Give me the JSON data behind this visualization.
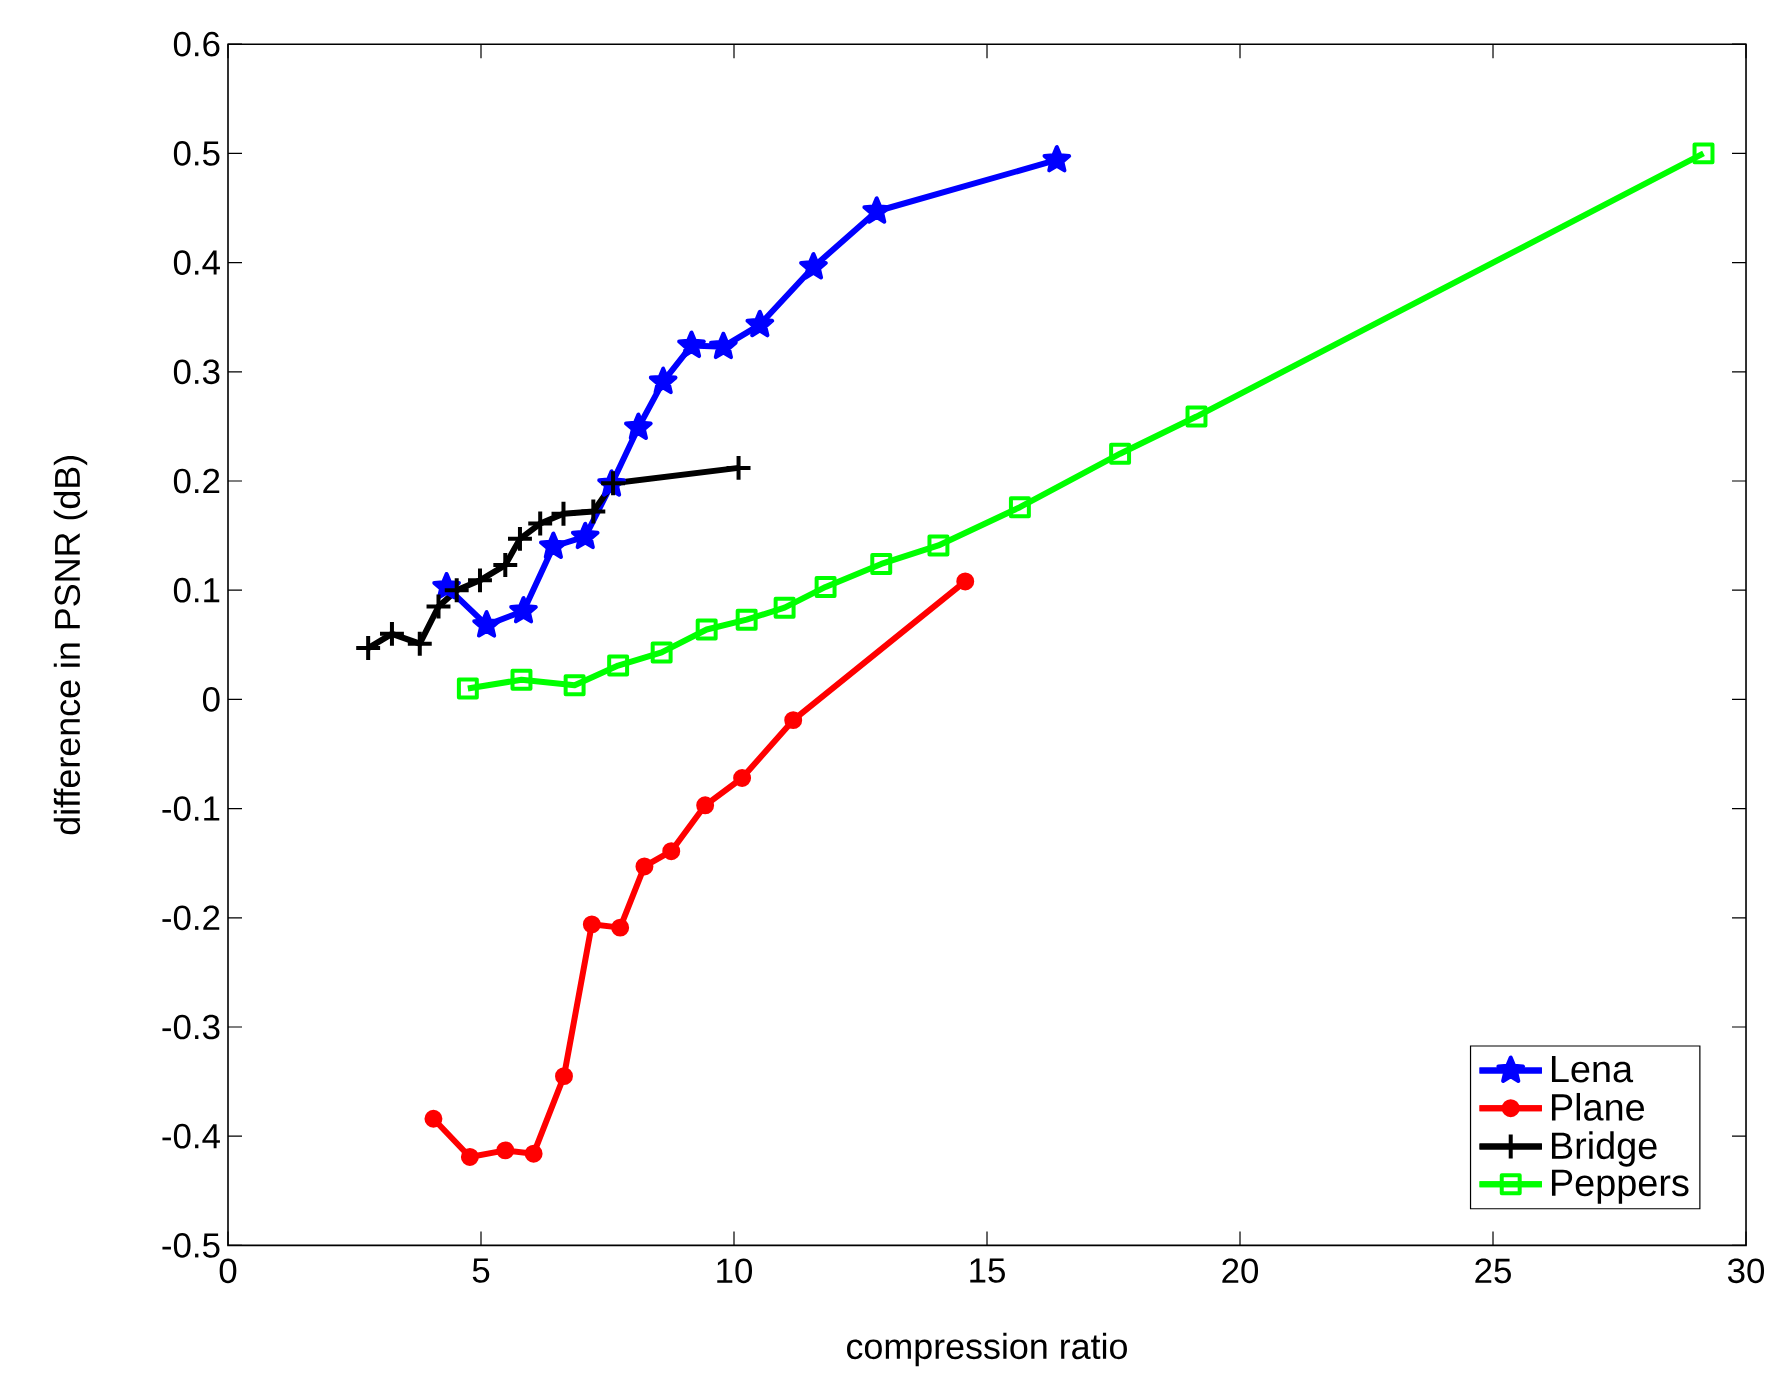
{
  "chart_data": {
    "type": "line",
    "xlabel": "compression ratio",
    "ylabel": "difference in PSNR (dB)",
    "xlim": [
      0,
      30
    ],
    "ylim": [
      -0.5,
      0.6
    ],
    "xticks": [
      0,
      5,
      10,
      15,
      20,
      25,
      30
    ],
    "yticks": [
      -0.5,
      -0.4,
      -0.3,
      -0.2,
      -0.1,
      0,
      0.1,
      0.2,
      0.3,
      0.4,
      0.5,
      0.6
    ],
    "grid": false,
    "legend": "bottom right",
    "line_style": "solid",
    "series": [
      {
        "name": "Lena",
        "color": "#0000ff",
        "marker": "star",
        "x": [
          4.32,
          5.11,
          5.84,
          6.43,
          7.06,
          7.58,
          8.11,
          8.6,
          9.16,
          9.79,
          10.51,
          11.57,
          12.82,
          16.38
        ],
        "values": [
          0.103,
          0.068,
          0.081,
          0.14,
          0.149,
          0.197,
          0.249,
          0.291,
          0.324,
          0.323,
          0.343,
          0.396,
          0.447,
          0.494
        ]
      },
      {
        "name": "Plane",
        "color": "#ff0000",
        "marker": "circle",
        "x": [
          4.06,
          4.78,
          5.48,
          6.04,
          6.64,
          7.19,
          7.75,
          8.23,
          8.76,
          9.43,
          10.16,
          11.17,
          14.57
        ],
        "values": [
          -0.384,
          -0.419,
          -0.413,
          -0.416,
          -0.345,
          -0.206,
          -0.209,
          -0.153,
          -0.139,
          -0.097,
          -0.072,
          -0.019,
          0.108
        ]
      },
      {
        "name": "Bridge",
        "color": "#000000",
        "marker": "cross",
        "x": [
          2.77,
          3.24,
          3.79,
          4.16,
          4.52,
          4.98,
          5.48,
          5.77,
          6.17,
          6.63,
          7.22,
          7.61,
          10.09
        ],
        "values": [
          0.047,
          0.06,
          0.051,
          0.085,
          0.1,
          0.109,
          0.123,
          0.147,
          0.161,
          0.17,
          0.172,
          0.198,
          0.212
        ]
      },
      {
        "name": "Peppers",
        "color": "#00ff00",
        "marker": "square",
        "x": [
          4.74,
          5.8,
          6.85,
          7.71,
          8.57,
          9.46,
          10.25,
          11.0,
          11.81,
          12.91,
          14.04,
          15.65,
          17.63,
          19.14,
          29.16
        ],
        "values": [
          0.01,
          0.018,
          0.013,
          0.031,
          0.043,
          0.064,
          0.073,
          0.084,
          0.103,
          0.124,
          0.141,
          0.176,
          0.225,
          0.259,
          0.5
        ]
      }
    ]
  }
}
